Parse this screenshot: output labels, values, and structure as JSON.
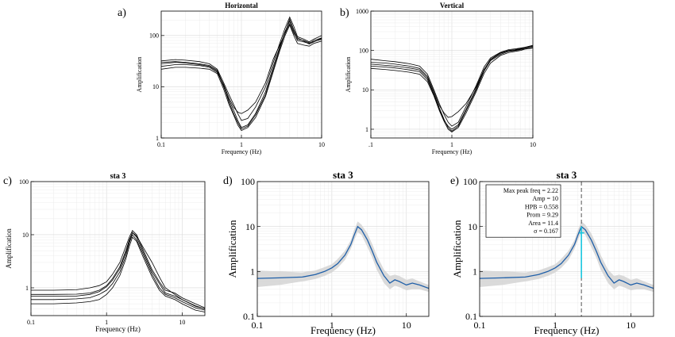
{
  "chart_data": [
    {
      "id": "a",
      "panel_label": "a)",
      "type": "line",
      "title": "Horizontal",
      "xlabel": "Frequency (Hz)",
      "ylabel": "Amplification",
      "xscale": "log",
      "yscale": "log",
      "xlim": [
        0.1,
        10
      ],
      "ylim": [
        1,
        300
      ],
      "x_ticks": [
        "0.1",
        "1",
        "10"
      ],
      "y_ticks": [
        "1",
        "10",
        "100"
      ],
      "grid": true,
      "curve_color": "#000000",
      "x": [
        0.1,
        0.15,
        0.2,
        0.3,
        0.4,
        0.5,
        0.6,
        0.7,
        0.8,
        0.9,
        1.0,
        1.2,
        1.5,
        2.0,
        2.5,
        3.0,
        3.5,
        4.0,
        4.5,
        5.0,
        6.0,
        7.0,
        8.0,
        10.0
      ],
      "series": [
        {
          "values": [
            28,
            30,
            29,
            27,
            25,
            20,
            10,
            5.5,
            3.5,
            2.2,
            1.6,
            1.8,
            3.0,
            8,
            25,
            60,
            120,
            190,
            120,
            80,
            75,
            70,
            80,
            90
          ]
        },
        {
          "values": [
            32,
            34,
            33,
            31,
            28,
            22,
            12,
            7,
            4.5,
            3,
            2.2,
            2.4,
            4,
            10,
            30,
            70,
            140,
            230,
            150,
            95,
            85,
            75,
            85,
            100
          ]
        },
        {
          "values": [
            22,
            24,
            24,
            23,
            22,
            18,
            9,
            4.5,
            2.8,
            1.8,
            1.4,
            1.6,
            2.5,
            6.5,
            20,
            50,
            100,
            160,
            100,
            70,
            65,
            62,
            70,
            78
          ]
        },
        {
          "values": [
            25,
            27,
            27,
            26,
            24,
            19,
            11,
            6,
            4,
            3.2,
            3,
            3.5,
            5,
            12,
            35,
            65,
            110,
            170,
            110,
            85,
            80,
            72,
            76,
            85
          ]
        },
        {
          "values": [
            30,
            31,
            30,
            28,
            26,
            21,
            10.5,
            5,
            3,
            2,
            1.5,
            1.7,
            2.8,
            7,
            22,
            55,
            115,
            210,
            130,
            90,
            78,
            68,
            75,
            88
          ]
        }
      ]
    },
    {
      "id": "b",
      "panel_label": "b)",
      "type": "line",
      "title": "Vertical",
      "xlabel": "Frequency (Hz)",
      "ylabel": "Amplification",
      "xscale": "log",
      "yscale": "log",
      "xlim": [
        0.1,
        10
      ],
      "ylim": [
        0.6,
        1000
      ],
      "x_ticks": [
        ".1",
        "1",
        "10"
      ],
      "y_ticks": [
        "1",
        "10",
        "100",
        "1000"
      ],
      "grid": true,
      "curve_color": "#000000",
      "x": [
        0.1,
        0.15,
        0.2,
        0.3,
        0.4,
        0.5,
        0.6,
        0.7,
        0.8,
        0.9,
        1.0,
        1.2,
        1.5,
        2.0,
        2.5,
        3.0,
        4.0,
        5.0,
        6.0,
        7.0,
        8.0,
        10.0
      ],
      "series": [
        {
          "values": [
            45,
            42,
            40,
            36,
            32,
            20,
            8,
            3.5,
            1.8,
            1.1,
            0.9,
            1.2,
            3,
            10,
            30,
            55,
            80,
            95,
            100,
            105,
            110,
            120
          ]
        },
        {
          "values": [
            60,
            55,
            52,
            46,
            40,
            25,
            10,
            4.5,
            2.4,
            1.5,
            1.2,
            1.5,
            3.8,
            13,
            38,
            65,
            90,
            105,
            110,
            115,
            120,
            135
          ]
        },
        {
          "values": [
            35,
            33,
            31,
            28,
            25,
            16,
            7,
            3,
            1.6,
            1.0,
            0.85,
            1.1,
            2.6,
            9,
            26,
            48,
            75,
            88,
            95,
            100,
            108,
            115
          ]
        },
        {
          "values": [
            50,
            48,
            45,
            40,
            35,
            22,
            9,
            4,
            2.6,
            2.0,
            2.1,
            2.8,
            4.5,
            12,
            33,
            58,
            85,
            98,
            102,
            108,
            115,
            128
          ]
        },
        {
          "values": [
            40,
            38,
            36,
            32,
            29,
            18,
            7.5,
            3.2,
            1.7,
            1.2,
            1.0,
            1.3,
            3.2,
            11,
            32,
            60,
            88,
            100,
            105,
            112,
            118,
            130
          ]
        }
      ]
    },
    {
      "id": "c",
      "panel_label": "c)",
      "type": "line",
      "title": "sta 3",
      "xlabel": "Frequency (Hz)",
      "ylabel": "Amplification",
      "xscale": "log",
      "yscale": "log",
      "xlim": [
        0.1,
        20
      ],
      "ylim": [
        0.3,
        100
      ],
      "x_ticks": [
        "0.1",
        "1",
        "10"
      ],
      "y_ticks": [
        "1",
        "10",
        "100"
      ],
      "grid": true,
      "curve_color": "#000000",
      "x": [
        0.1,
        0.2,
        0.4,
        0.6,
        0.8,
        1.0,
        1.2,
        1.5,
        1.8,
        2.0,
        2.2,
        2.5,
        3.0,
        4.0,
        5.0,
        6.0,
        8.0,
        10.0,
        15.0,
        20.0
      ],
      "series": [
        {
          "values": [
            0.75,
            0.75,
            0.76,
            0.8,
            0.9,
            1.1,
            1.5,
            2.5,
            5,
            8,
            11,
            9,
            5,
            2,
            1.2,
            0.8,
            0.7,
            0.6,
            0.45,
            0.4
          ]
        },
        {
          "values": [
            0.6,
            0.6,
            0.62,
            0.65,
            0.75,
            0.9,
            1.2,
            2.0,
            4,
            7,
            10,
            8,
            4.5,
            1.8,
            1.0,
            0.75,
            0.65,
            0.55,
            0.42,
            0.38
          ]
        },
        {
          "values": [
            0.9,
            0.9,
            0.92,
            1.0,
            1.1,
            1.3,
            1.8,
            3.0,
            6,
            9,
            12,
            10,
            5.5,
            2.2,
            1.3,
            0.9,
            0.8,
            0.65,
            0.5,
            0.42
          ]
        },
        {
          "values": [
            0.5,
            0.5,
            0.52,
            0.55,
            0.6,
            0.75,
            1.0,
            1.7,
            3.5,
            6,
            9,
            7.5,
            4,
            1.6,
            0.9,
            0.7,
            0.6,
            0.5,
            0.38,
            0.35
          ]
        },
        {
          "values": [
            0.7,
            0.7,
            0.7,
            0.75,
            0.85,
            1.05,
            1.4,
            2.3,
            4.6,
            7.5,
            11,
            9.5,
            6,
            3,
            1.6,
            1.0,
            0.75,
            0.6,
            0.46,
            0.4
          ]
        }
      ]
    },
    {
      "id": "d",
      "panel_label": "d)",
      "type": "line",
      "title": "sta 3",
      "xlabel": "Frequency (Hz)",
      "ylabel": "Amplification",
      "xscale": "log",
      "yscale": "log",
      "xlim": [
        0.1,
        20
      ],
      "ylim": [
        0.1,
        100
      ],
      "x_ticks": [
        "0.1",
        "1",
        "10"
      ],
      "y_ticks": [
        "0.1",
        "1",
        "10",
        "100"
      ],
      "grid": true,
      "curve_color": "#1f5fa8",
      "band_color": "#d3d3d3",
      "x": [
        0.1,
        0.2,
        0.4,
        0.6,
        0.8,
        1.0,
        1.2,
        1.5,
        1.8,
        2.0,
        2.22,
        2.5,
        3.0,
        3.5,
        4.0,
        5.0,
        6.0,
        7.0,
        8.0,
        10.0,
        12.0,
        15.0,
        20.0
      ],
      "mean": [
        0.7,
        0.72,
        0.75,
        0.85,
        1.0,
        1.2,
        1.5,
        2.3,
        4.0,
        6.5,
        10,
        8.5,
        5.0,
        2.8,
        1.6,
        0.8,
        0.55,
        0.65,
        0.6,
        0.5,
        0.55,
        0.5,
        0.42
      ],
      "upper": [
        1.05,
        1.0,
        0.95,
        1.05,
        1.25,
        1.45,
        1.9,
        2.9,
        5.0,
        8.5,
        13,
        11,
        7.0,
        4.0,
        2.3,
        1.1,
        0.8,
        0.85,
        0.8,
        0.65,
        0.7,
        0.6,
        0.5
      ],
      "lower": [
        0.45,
        0.5,
        0.6,
        0.68,
        0.8,
        0.95,
        1.2,
        1.8,
        3.2,
        5.0,
        7.5,
        6.5,
        3.5,
        2.0,
        1.1,
        0.55,
        0.4,
        0.48,
        0.45,
        0.38,
        0.4,
        0.4,
        0.35
      ]
    },
    {
      "id": "e",
      "panel_label": "e)",
      "type": "line",
      "title": "sta 3",
      "xlabel": "Frequency (Hz)",
      "ylabel": "Amplification",
      "xscale": "log",
      "yscale": "log",
      "xlim": [
        0.1,
        20
      ],
      "ylim": [
        0.1,
        100
      ],
      "x_ticks": [
        "0.1",
        "1",
        "10"
      ],
      "y_ticks": [
        "0.1",
        "1",
        "10",
        "100"
      ],
      "grid": true,
      "curve_color": "#1f5fa8",
      "band_color": "#d3d3d3",
      "peak_color": "#19c8e0",
      "x": [
        0.1,
        0.2,
        0.4,
        0.6,
        0.8,
        1.0,
        1.2,
        1.5,
        1.8,
        2.0,
        2.22,
        2.5,
        3.0,
        3.5,
        4.0,
        5.0,
        6.0,
        7.0,
        8.0,
        10.0,
        12.0,
        15.0,
        20.0
      ],
      "mean": [
        0.7,
        0.72,
        0.75,
        0.85,
        1.0,
        1.2,
        1.5,
        2.3,
        4.0,
        6.5,
        10,
        8.5,
        5.0,
        2.8,
        1.6,
        0.8,
        0.55,
        0.65,
        0.6,
        0.5,
        0.55,
        0.5,
        0.42
      ],
      "upper": [
        1.05,
        1.0,
        0.95,
        1.05,
        1.25,
        1.45,
        1.9,
        2.9,
        5.0,
        8.5,
        13,
        11,
        7.0,
        4.0,
        2.3,
        1.1,
        0.8,
        0.85,
        0.8,
        0.65,
        0.7,
        0.6,
        0.5
      ],
      "lower": [
        0.45,
        0.5,
        0.6,
        0.68,
        0.8,
        0.95,
        1.2,
        1.8,
        3.2,
        5.0,
        7.5,
        6.5,
        3.5,
        2.0,
        1.1,
        0.55,
        0.4,
        0.48,
        0.45,
        0.38,
        0.4,
        0.4,
        0.35
      ],
      "peak": {
        "freq": 2.22,
        "amp": 10,
        "hpb": 0.558
      },
      "annotation_lines": [
        "Max peak freq = 2.22",
        "Amp = 10",
        "HPB = 0.558",
        "Prom = 9.29",
        "Area = 11.4",
        "σ = 0.167"
      ]
    }
  ]
}
